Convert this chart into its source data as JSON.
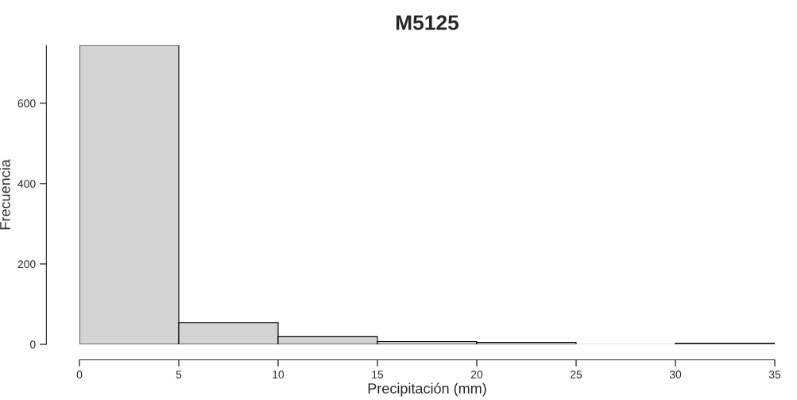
{
  "chart_data": {
    "type": "histogram",
    "title": "M5125",
    "xlabel": "Precipitación (mm)",
    "ylabel": "Frecuencia",
    "bins": [
      0,
      5,
      10,
      15,
      20,
      25,
      30,
      35
    ],
    "values": [
      744,
      54,
      19,
      7,
      5,
      0,
      3
    ],
    "color": "#d3d3d3",
    "xlim": [
      0,
      35
    ],
    "xticks": [
      0,
      5,
      10,
      15,
      20,
      25,
      30,
      35
    ],
    "ylim": [
      0,
      744
    ],
    "yticks": [
      0,
      200,
      400,
      600
    ],
    "grid": false
  }
}
